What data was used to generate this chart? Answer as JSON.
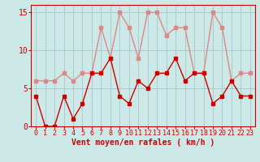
{
  "x": [
    0,
    1,
    2,
    3,
    4,
    5,
    6,
    7,
    8,
    9,
    10,
    11,
    12,
    13,
    14,
    15,
    16,
    17,
    18,
    19,
    20,
    21,
    22,
    23
  ],
  "vent_moyen": [
    4,
    0,
    0,
    4,
    1,
    3,
    7,
    7,
    9,
    4,
    3,
    6,
    5,
    7,
    7,
    9,
    6,
    7,
    7,
    3,
    4,
    6,
    4,
    4
  ],
  "rafales": [
    6,
    6,
    6,
    7,
    6,
    7,
    7,
    13,
    9,
    15,
    13,
    9,
    15,
    15,
    12,
    13,
    13,
    7,
    7,
    15,
    13,
    6,
    7,
    7
  ],
  "xlabel": "Vent moyen/en rafales ( km/h )",
  "ylim": [
    0,
    16
  ],
  "yticks": [
    0,
    5,
    10,
    15
  ],
  "bg_color": "#cce9e8",
  "grid_color": "#aacccc",
  "line_color_moyen": "#cc0000",
  "line_color_rafales": "#dd8888",
  "marker_size": 2.5,
  "line_width": 1.0,
  "xlabel_fontsize": 7,
  "tick_fontsize": 6,
  "ytick_fontsize": 7
}
